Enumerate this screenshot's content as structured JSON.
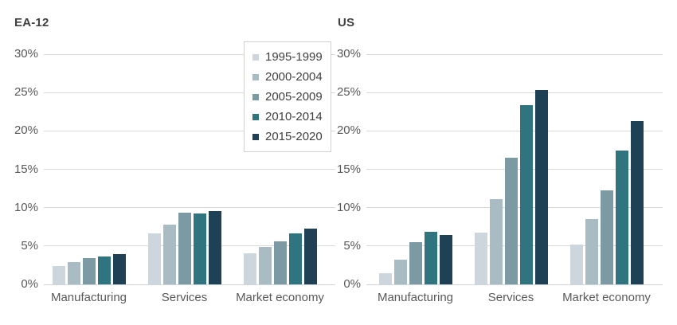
{
  "chart_data": [
    {
      "type": "bar",
      "title": "EA-12",
      "categories": [
        "Manufacturing",
        "Services",
        "Market economy"
      ],
      "series": [
        {
          "name": "1995-1999",
          "color": "#ccd6dc",
          "values": [
            2.4,
            6.6,
            4.0
          ]
        },
        {
          "name": "2000-2004",
          "color": "#a9bcc3",
          "values": [
            2.9,
            7.8,
            4.9
          ]
        },
        {
          "name": "2005-2009",
          "color": "#7b9aa3",
          "values": [
            3.4,
            9.3,
            5.6
          ]
        },
        {
          "name": "2010-2014",
          "color": "#30747f",
          "values": [
            3.6,
            9.2,
            6.6
          ]
        },
        {
          "name": "2015-2020",
          "color": "#1f4156",
          "values": [
            3.9,
            9.5,
            7.3
          ]
        }
      ],
      "ylim": [
        0,
        30
      ],
      "ytick_step": 5,
      "ytick_labels": [
        "0%",
        "5%",
        "10%",
        "15%",
        "20%",
        "25%",
        "30%"
      ],
      "grid": true,
      "legend_position": "top-right-of-panel"
    },
    {
      "type": "bar",
      "title": "US",
      "categories": [
        "Manufacturing",
        "Services",
        "Market economy"
      ],
      "series": [
        {
          "name": "1995-1999",
          "color": "#ccd6dc",
          "values": [
            1.5,
            6.7,
            5.2
          ]
        },
        {
          "name": "2000-2004",
          "color": "#a9bcc3",
          "values": [
            3.2,
            11.1,
            8.5
          ]
        },
        {
          "name": "2005-2009",
          "color": "#7b9aa3",
          "values": [
            5.5,
            16.5,
            12.3
          ]
        },
        {
          "name": "2010-2014",
          "color": "#30747f",
          "values": [
            6.9,
            23.4,
            17.4
          ]
        },
        {
          "name": "2015-2020",
          "color": "#1f4156",
          "values": [
            6.4,
            25.3,
            21.3
          ]
        }
      ],
      "ylim": [
        0,
        30
      ],
      "ytick_step": 5,
      "ytick_labels": [
        "0%",
        "5%",
        "10%",
        "15%",
        "20%",
        "25%",
        "30%"
      ],
      "grid": true,
      "legend_position": "none"
    }
  ],
  "legend": {
    "entries": [
      {
        "label": "1995-1999",
        "color": "#ccd6dc"
      },
      {
        "label": "2000-2004",
        "color": "#a9bcc3"
      },
      {
        "label": "2005-2009",
        "color": "#7b9aa3"
      },
      {
        "label": "2010-2014",
        "color": "#30747f"
      },
      {
        "label": "2015-2020",
        "color": "#1f4156"
      }
    ]
  },
  "style": {
    "title_color": "#404040",
    "axis_label_color": "#595959",
    "gridline_color": "#d9d9d9",
    "legend_border_color": "#d1d1d1",
    "background": "#ffffff"
  }
}
